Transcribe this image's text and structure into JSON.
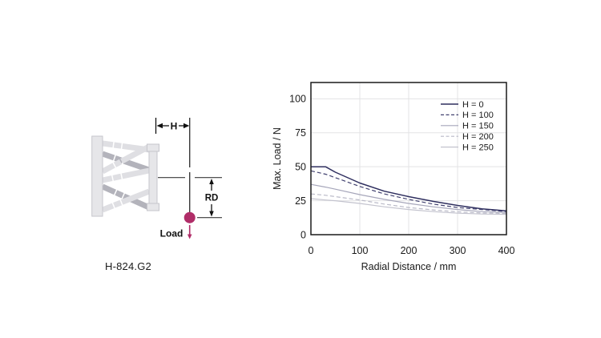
{
  "figure": {
    "model_label": "H-824.G2",
    "dim_h_label": "H",
    "dim_rd_label": "RD",
    "load_label": "Load",
    "load_color": "#b02d68"
  },
  "chart_data": {
    "type": "line",
    "title": "",
    "xlabel": "Radial Distance / mm",
    "ylabel": "Max. Load / N",
    "xlim": [
      0,
      400
    ],
    "ylim": [
      0,
      112
    ],
    "x_ticks": [
      0,
      100,
      200,
      300,
      400
    ],
    "y_ticks": [
      0,
      25,
      50,
      75,
      100
    ],
    "grid": true,
    "legend_position": "top-right",
    "x": [
      0,
      30,
      50,
      100,
      150,
      200,
      250,
      300,
      350,
      400
    ],
    "series": [
      {
        "name": "H = 0",
        "color": "#2f2f5f",
        "dash": null,
        "values": [
          50,
          50,
          46,
          38,
          32,
          28,
          24.5,
          21.5,
          19,
          17.5
        ]
      },
      {
        "name": "H = 100",
        "color": "#41416f",
        "dash": "5 3",
        "values": [
          47,
          44.5,
          42,
          35.5,
          30,
          26,
          22.5,
          20,
          18.5,
          17
        ]
      },
      {
        "name": "H = 150",
        "color": "#a6a6ba",
        "dash": null,
        "values": [
          37,
          35,
          33.5,
          29.5,
          26,
          23,
          20.5,
          18.5,
          17,
          16.3
        ]
      },
      {
        "name": "H = 200",
        "color": "#b9b9c7",
        "dash": "5 3",
        "values": [
          30,
          29,
          28,
          25.5,
          22.5,
          20,
          18.2,
          16.8,
          16,
          15.7
        ]
      },
      {
        "name": "H = 250",
        "color": "#c3c3ce",
        "dash": null,
        "values": [
          26.5,
          25.5,
          25,
          23,
          20.5,
          18.5,
          17,
          15.8,
          15.2,
          15
        ]
      }
    ]
  }
}
